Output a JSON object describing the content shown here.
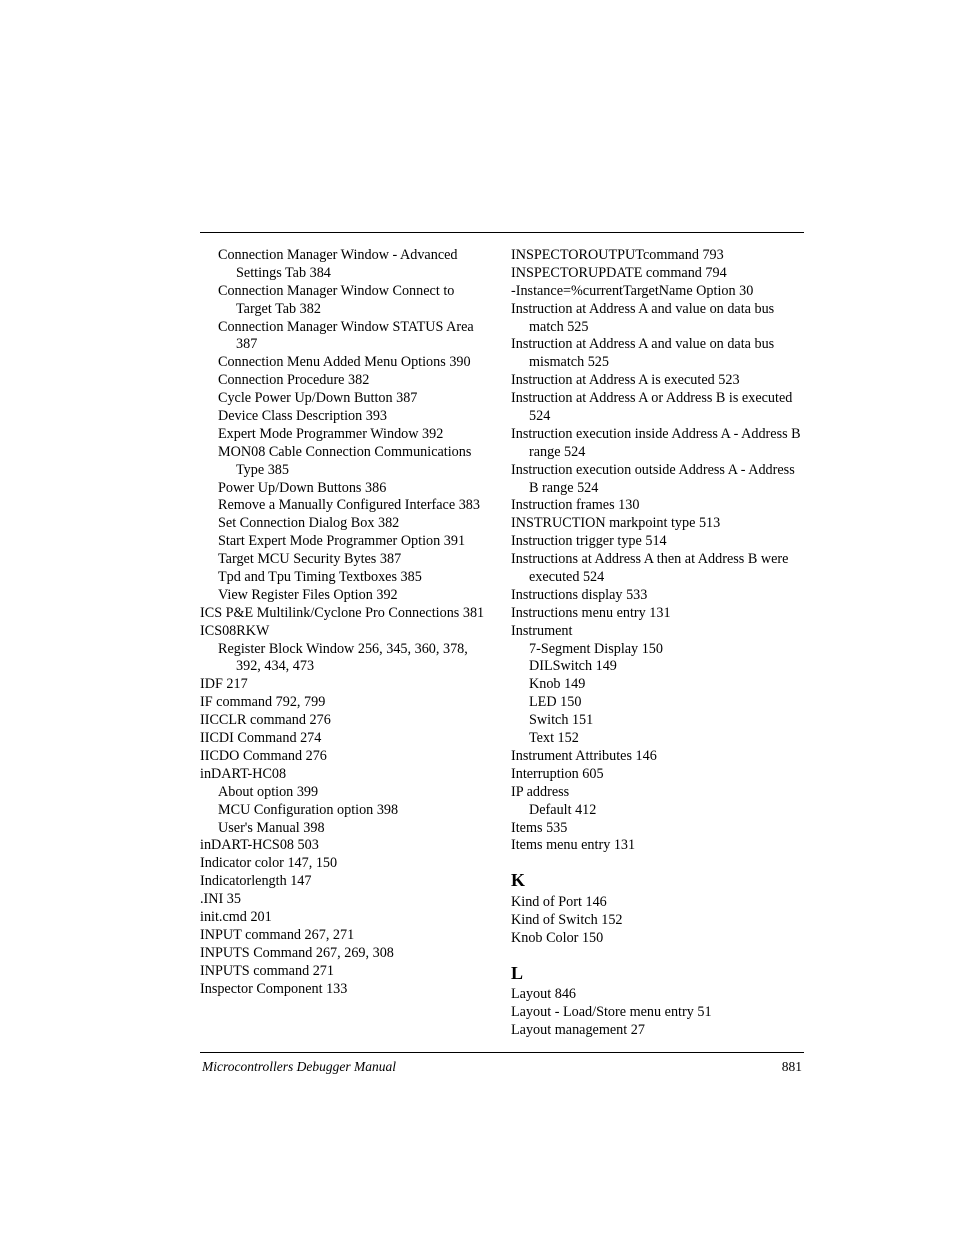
{
  "footer": {
    "title": "Microcontrollers Debugger Manual",
    "page": "881"
  },
  "left": [
    {
      "i": 1,
      "t": "Connection Manager Window - Advanced Settings Tab  384"
    },
    {
      "i": 1,
      "t": "Connection Manager Window Connect to Target Tab  382"
    },
    {
      "i": 1,
      "t": "Connection Manager Window STATUS Area  387"
    },
    {
      "i": 1,
      "t": "Connection Menu Added Menu Options  390"
    },
    {
      "i": 1,
      "t": "Connection Procedure  382"
    },
    {
      "i": 1,
      "t": "Cycle Power Up/Down Button  387"
    },
    {
      "i": 1,
      "t": "Device Class Description  393"
    },
    {
      "i": 1,
      "t": "Expert Mode Programmer Window  392"
    },
    {
      "i": 1,
      "t": "MON08 Cable Connection Communications Type  385"
    },
    {
      "i": 1,
      "t": "Power Up/Down Buttons  386"
    },
    {
      "i": 1,
      "t": "Remove a Manually Configured Interface  383"
    },
    {
      "i": 1,
      "t": "Set Connection Dialog Box  382"
    },
    {
      "i": 1,
      "t": "Start Expert Mode Programmer Option  391"
    },
    {
      "i": 1,
      "t": "Target MCU Security Bytes  387"
    },
    {
      "i": 1,
      "t": "Tpd and Tpu Timing Textboxes  385"
    },
    {
      "i": 1,
      "t": "View Register Files Option  392"
    },
    {
      "i": 0,
      "t": "ICS P&E Multilink/Cyclone Pro Connections  381"
    },
    {
      "i": 0,
      "t": "ICS08RKW"
    },
    {
      "i": 1,
      "t": "Register Block Window  256, 345, 360, 378, 392, 434, 473"
    },
    {
      "i": 0,
      "t": "IDF  217"
    },
    {
      "i": 0,
      "t": "IF command  792, 799"
    },
    {
      "i": 0,
      "t": "IICCLR command  276"
    },
    {
      "i": 0,
      "t": "IICDI Command  274"
    },
    {
      "i": 0,
      "t": "IICDO Command  276"
    },
    {
      "i": 0,
      "t": "inDART-HC08"
    },
    {
      "i": 1,
      "t": "About option  399"
    },
    {
      "i": 1,
      "t": "MCU Configuration option  398"
    },
    {
      "i": 1,
      "t": "User's Manual  398"
    },
    {
      "i": 0,
      "t": "inDART-HCS08  503"
    },
    {
      "i": 0,
      "t": "Indicator color  147, 150"
    },
    {
      "i": 0,
      "t": "Indicatorlength  147"
    },
    {
      "i": 0,
      "t": ".INI  35"
    },
    {
      "i": 0,
      "t": "init.cmd  201"
    },
    {
      "i": 0,
      "t": "INPUT command  267, 271"
    },
    {
      "i": 0,
      "t": "INPUTS Command  267, 269, 308"
    },
    {
      "i": 0,
      "t": "INPUTS command  271"
    },
    {
      "i": 0,
      "t": "Inspector Component  133"
    }
  ],
  "right": [
    {
      "i": 0,
      "t": "INSPECTOROUTPUTcommand  793"
    },
    {
      "i": 0,
      "t": "INSPECTORUPDATE command  794"
    },
    {
      "i": 0,
      "t": "-Instance=%currentTargetName Option  30"
    },
    {
      "i": 0,
      "t": "Instruction at Address A and value on data bus match  525"
    },
    {
      "i": 0,
      "t": "Instruction at Address A and value on data bus mismatch  525"
    },
    {
      "i": 0,
      "t": "Instruction at Address A is executed  523"
    },
    {
      "i": 0,
      "t": "Instruction at Address A or Address B is executed  524"
    },
    {
      "i": 0,
      "t": "Instruction execution inside Address A - Address B range  524"
    },
    {
      "i": 0,
      "t": "Instruction execution outside Address A - Address B range  524"
    },
    {
      "i": 0,
      "t": "Instruction frames  130"
    },
    {
      "i": 0,
      "t": "INSTRUCTION markpoint type  513"
    },
    {
      "i": 0,
      "t": "Instruction trigger type  514"
    },
    {
      "i": 0,
      "t": "Instructions at Address A then at Address B were executed  524"
    },
    {
      "i": 0,
      "t": "Instructions display  533"
    },
    {
      "i": 0,
      "t": "Instructions menu entry  131"
    },
    {
      "i": 0,
      "t": "Instrument"
    },
    {
      "i": 1,
      "t": "7-Segment Display  150"
    },
    {
      "i": 1,
      "t": "DILSwitch  149"
    },
    {
      "i": 1,
      "t": "Knob  149"
    },
    {
      "i": 1,
      "t": "LED  150"
    },
    {
      "i": 1,
      "t": "Switch  151"
    },
    {
      "i": 1,
      "t": "Text  152"
    },
    {
      "i": 0,
      "t": "Instrument Attributes  146"
    },
    {
      "i": 0,
      "t": "Interruption  605"
    },
    {
      "i": 0,
      "t": "IP address"
    },
    {
      "i": 1,
      "t": "Default  412"
    },
    {
      "i": 0,
      "t": "Items  535"
    },
    {
      "i": 0,
      "t": "Items menu entry  131"
    },
    {
      "section": "K"
    },
    {
      "i": 0,
      "t": "Kind of Port  146"
    },
    {
      "i": 0,
      "t": "Kind of Switch  152"
    },
    {
      "i": 0,
      "t": "Knob Color  150"
    },
    {
      "section": "L"
    },
    {
      "i": 0,
      "t": "Layout  846"
    },
    {
      "i": 0,
      "t": "Layout - Load/Store menu entry  51"
    },
    {
      "i": 0,
      "t": "Layout management  27"
    }
  ]
}
